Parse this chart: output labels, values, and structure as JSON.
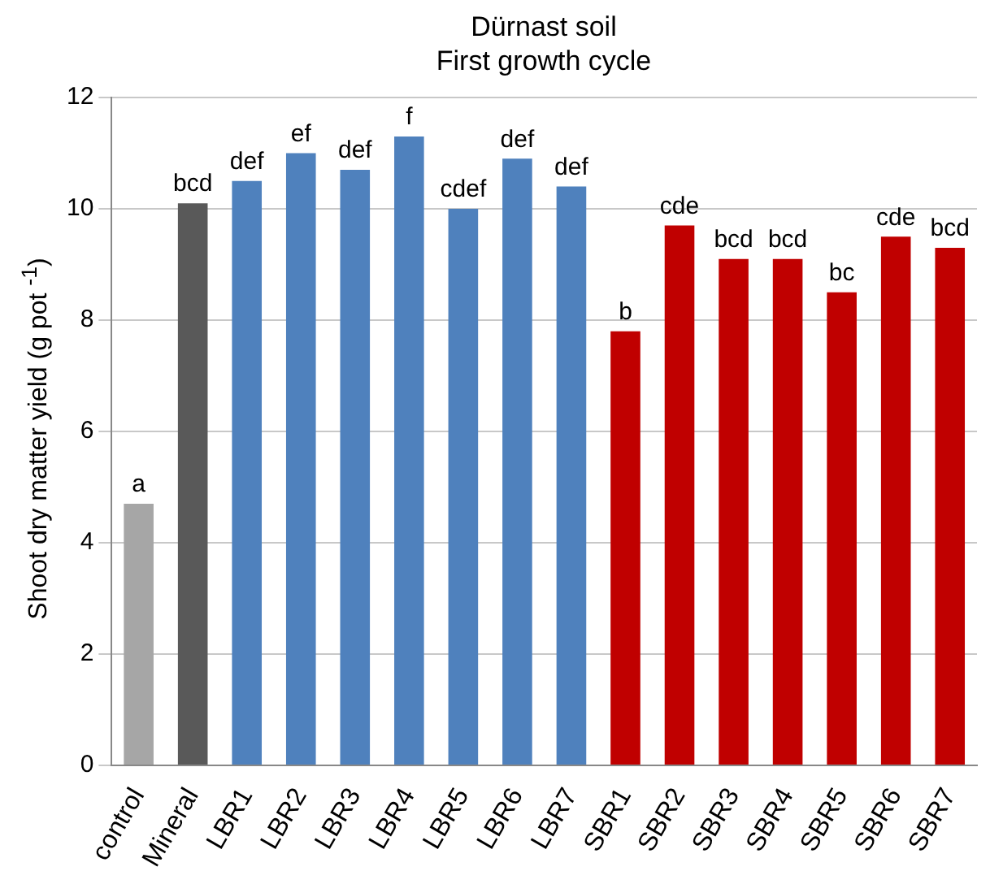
{
  "chart_data": {
    "type": "bar",
    "title": "Dürnast soil",
    "subtitle": "First growth cycle",
    "ylabel": "Shoot dry matter yield (g pot $^{-1}$)",
    "categories": [
      "control",
      "Mineral",
      "LBR1",
      "LBR2",
      "LBR3",
      "LBR4",
      "LBR5",
      "LBR6",
      "LBR7",
      "SBR1",
      "SBR2",
      "SBR3",
      "SBR4",
      "SBR5",
      "SBR6",
      "SBR7"
    ],
    "values": [
      4.7,
      10.1,
      10.5,
      11.0,
      10.7,
      11.3,
      10.0,
      10.9,
      10.4,
      7.8,
      9.7,
      9.1,
      9.1,
      8.5,
      9.5,
      9.3
    ],
    "colors": [
      "#a6a6a6",
      "#595959",
      "#4f81bd",
      "#4f81bd",
      "#4f81bd",
      "#4f81bd",
      "#4f81bd",
      "#4f81bd",
      "#4f81bd",
      "#c00000",
      "#c00000",
      "#c00000",
      "#c00000",
      "#c00000",
      "#c00000",
      "#c00000"
    ],
    "ylim": [
      0,
      12
    ],
    "yticks": [
      0,
      2,
      4,
      6,
      8,
      10,
      12
    ],
    "grid": "y",
    "legend": false,
    "annotations": [
      {
        "text": "a",
        "x": "control",
        "y": 4.7
      },
      {
        "text": "bcd",
        "x": "Mineral",
        "y": 10.1
      },
      {
        "text": "def",
        "x": "LBR1",
        "y": 10.5
      },
      {
        "text": "ef",
        "x": "LBR2",
        "y": 11.0
      },
      {
        "text": "def",
        "x": "LBR3",
        "y": 10.7
      },
      {
        "text": "f",
        "x": "LBR4",
        "y": 11.3
      },
      {
        "text": "cdef",
        "x": "LBR5",
        "y": 10.0
      },
      {
        "text": "def",
        "x": "LBR6",
        "y": 10.9
      },
      {
        "text": "def",
        "x": "LBR7",
        "y": 10.4
      },
      {
        "text": "b",
        "x": "SBR1",
        "y": 7.8
      },
      {
        "text": "cde",
        "x": "SBR2",
        "y": 9.7
      },
      {
        "text": "bcd",
        "x": "SBR3",
        "y": 9.1
      },
      {
        "text": "bcd",
        "x": "SBR4",
        "y": 9.1
      },
      {
        "text": "bc",
        "x": "SBR5",
        "y": 8.5
      },
      {
        "text": "cde",
        "x": "SBR6",
        "y": 9.5
      },
      {
        "text": "bcd",
        "x": "SBR7",
        "y": 9.3
      }
    ]
  }
}
